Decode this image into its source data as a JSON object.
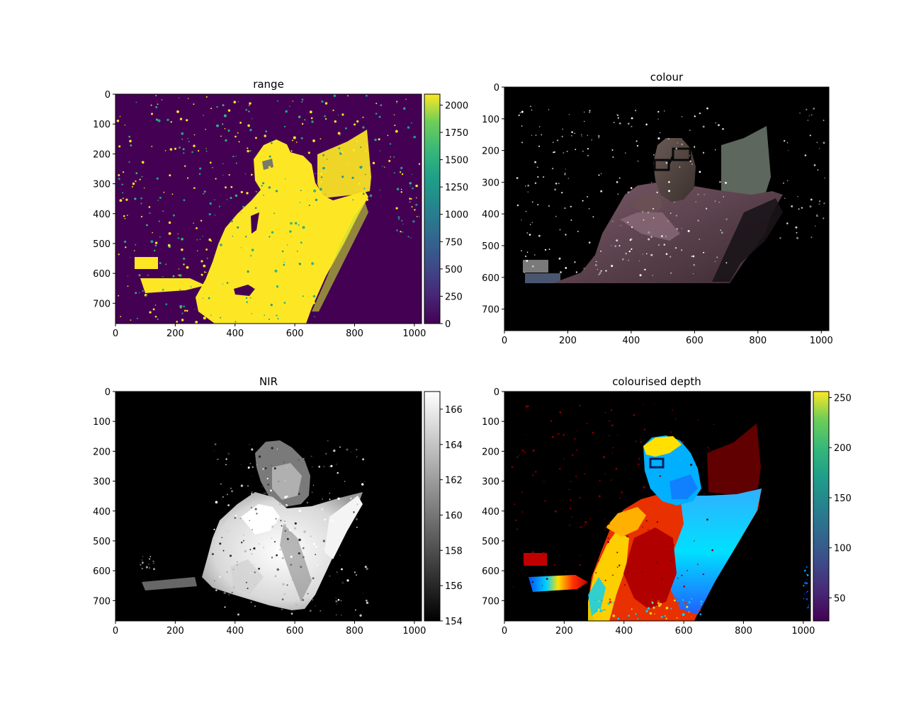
{
  "chart_data": [
    {
      "type": "heatmap",
      "title": "range",
      "x_ticks": [
        0,
        200,
        400,
        600,
        800,
        1000
      ],
      "y_ticks": [
        0,
        100,
        200,
        300,
        400,
        500,
        600,
        700
      ],
      "xlim": [
        0,
        1024
      ],
      "ylim": [
        768,
        0
      ],
      "colormap": "viridis",
      "colorbar": {
        "ticks": [
          0,
          250,
          500,
          750,
          1000,
          1250,
          1500,
          1750,
          2000
        ],
        "range": [
          0,
          2100
        ]
      },
      "content": "range"
    },
    {
      "type": "heatmap",
      "title": "colour",
      "x_ticks": [
        0,
        200,
        400,
        600,
        800,
        1000
      ],
      "y_ticks": [
        0,
        100,
        200,
        300,
        400,
        500,
        600,
        700
      ],
      "xlim": [
        0,
        1024
      ],
      "ylim": [
        768,
        0
      ],
      "colormap": "rgb",
      "content": "colour"
    },
    {
      "type": "heatmap",
      "title": "NIR",
      "x_ticks": [
        0,
        200,
        400,
        600,
        800,
        1000
      ],
      "y_ticks": [
        0,
        100,
        200,
        300,
        400,
        500,
        600,
        700
      ],
      "xlim": [
        0,
        1024
      ],
      "ylim": [
        768,
        0
      ],
      "colormap": "gray",
      "colorbar": {
        "ticks": [
          154,
          156,
          158,
          160,
          162,
          164,
          166
        ],
        "range": [
          154,
          167
        ]
      },
      "content": "nir"
    },
    {
      "type": "heatmap",
      "title": "colourised depth",
      "x_ticks": [
        0,
        200,
        400,
        600,
        800,
        1000
      ],
      "y_ticks": [
        0,
        100,
        200,
        300,
        400,
        500,
        600,
        700
      ],
      "xlim": [
        0,
        1024
      ],
      "ylim": [
        768,
        0
      ],
      "colormap": "viridis",
      "colorbar": {
        "ticks": [
          50,
          100,
          150,
          200,
          250
        ],
        "range": [
          27,
          256
        ]
      },
      "content": "depth"
    }
  ]
}
